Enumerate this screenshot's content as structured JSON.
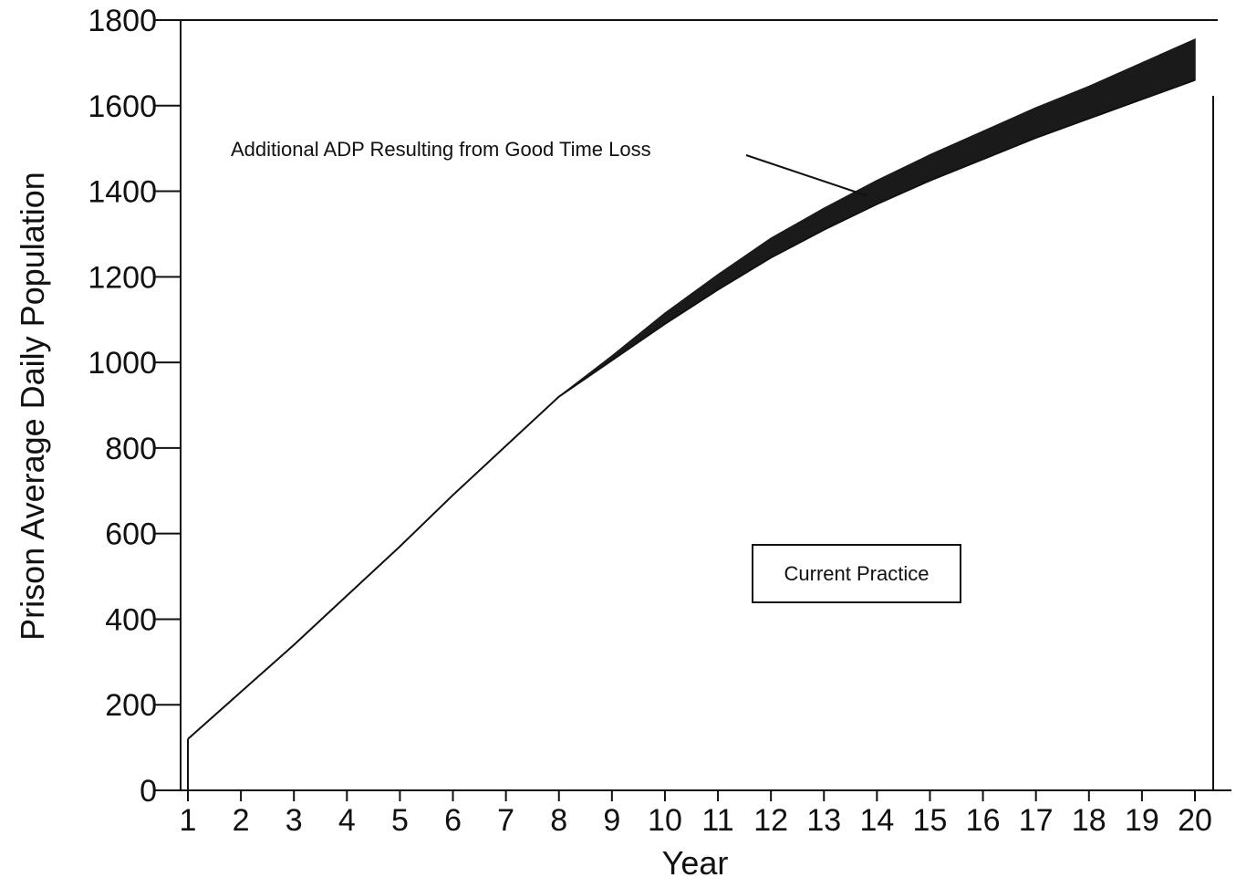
{
  "chart_data": {
    "type": "area",
    "title": "",
    "xlabel": "Year",
    "ylabel": "Prison Average Daily Population",
    "xlim": [
      1,
      20
    ],
    "ylim": [
      0,
      1800
    ],
    "x_ticks": [
      "1",
      "2",
      "3",
      "4",
      "5",
      "6",
      "7",
      "8",
      "9",
      "10",
      "11",
      "12",
      "13",
      "14",
      "15",
      "16",
      "17",
      "18",
      "19",
      "20"
    ],
    "y_ticks": [
      "0",
      "200",
      "400",
      "600",
      "800",
      "1000",
      "1200",
      "1400",
      "1600",
      "1800"
    ],
    "grid": false,
    "series": [
      {
        "name": "Current Practice",
        "style": "line",
        "x": [
          1,
          2,
          3,
          4,
          5,
          6,
          7,
          8,
          9,
          10,
          11,
          12,
          13,
          14,
          15,
          16,
          17,
          18,
          19,
          20
        ],
        "values": [
          120,
          230,
          340,
          455,
          570,
          690,
          805,
          920,
          1005,
          1090,
          1170,
          1245,
          1310,
          1370,
          1425,
          1475,
          1525,
          1570,
          1615,
          1660
        ]
      },
      {
        "name": "Additional ADP Resulting from Good Time Loss",
        "style": "band",
        "x": [
          1,
          2,
          3,
          4,
          5,
          6,
          7,
          8,
          9,
          10,
          11,
          12,
          13,
          14,
          15,
          16,
          17,
          18,
          19,
          20
        ],
        "lower": [
          120,
          230,
          340,
          455,
          570,
          690,
          805,
          920,
          1005,
          1090,
          1170,
          1245,
          1310,
          1370,
          1425,
          1475,
          1525,
          1570,
          1615,
          1660
        ],
        "upper": [
          120,
          230,
          340,
          455,
          570,
          690,
          805,
          920,
          1015,
          1115,
          1205,
          1290,
          1360,
          1425,
          1485,
          1540,
          1595,
          1645,
          1700,
          1755
        ]
      }
    ],
    "annotations": [
      {
        "text": "Additional ADP Resulting from Good Time Loss",
        "points_to": {
          "x": 13.8,
          "y": 1390
        }
      },
      {
        "text": "Current Practice",
        "boxed": true
      }
    ],
    "colors": {
      "band": "#1a1a1a",
      "line": "#111111",
      "axis": "#111111"
    }
  }
}
